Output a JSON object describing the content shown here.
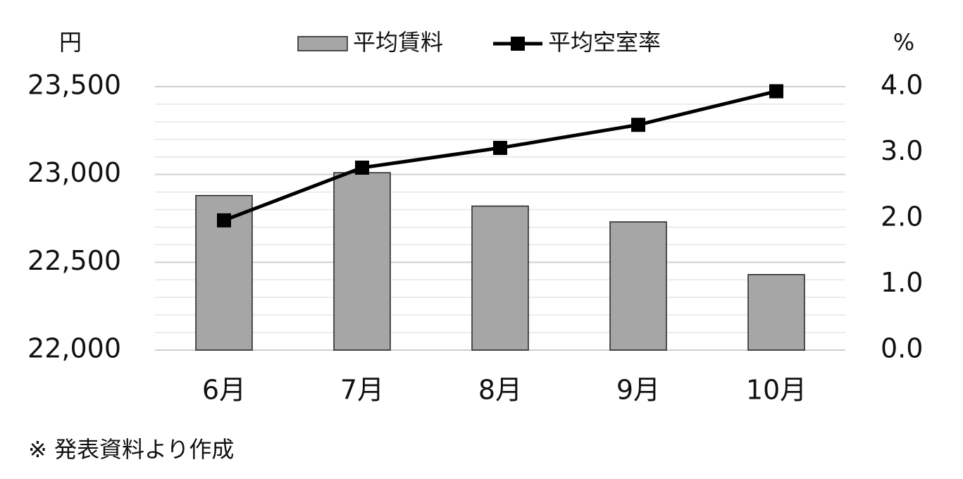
{
  "chart_data": {
    "type": "bar-line",
    "y_label": "円",
    "y2_label": "%",
    "note": "※ 発表資料より作成",
    "categories": [
      "6月",
      "7月",
      "8月",
      "9月",
      "10月"
    ],
    "series": [
      {
        "name": "平均賃料",
        "type": "bar",
        "color": "#a6a6a6",
        "values": [
          22880,
          23010,
          22820,
          22730,
          22430
        ]
      },
      {
        "name": "平均空室率",
        "type": "line",
        "axis": "y2",
        "color": "#000000",
        "values": [
          1.97,
          2.77,
          3.07,
          3.42,
          3.93
        ]
      }
    ],
    "ylim": [
      22000,
      23500
    ],
    "yticks": [
      {
        "value": 22000,
        "label": "22,000"
      },
      {
        "value": 22500,
        "label": "22,500"
      },
      {
        "value": 23000,
        "label": "23,000"
      },
      {
        "value": 23500,
        "label": "23,500"
      }
    ],
    "yminorticks": [
      22100,
      22200,
      22300,
      22400,
      22600,
      22700,
      22800,
      22900,
      23100,
      23200,
      23300,
      23400
    ],
    "y2lim": [
      0,
      4
    ],
    "y2ticks": [
      {
        "value": 0,
        "label": "0.0"
      },
      {
        "value": 1,
        "label": "1.0"
      },
      {
        "value": 2,
        "label": "2.0"
      },
      {
        "value": 3,
        "label": "3.0"
      },
      {
        "value": 4,
        "label": "4.0"
      }
    ],
    "grid": true
  }
}
